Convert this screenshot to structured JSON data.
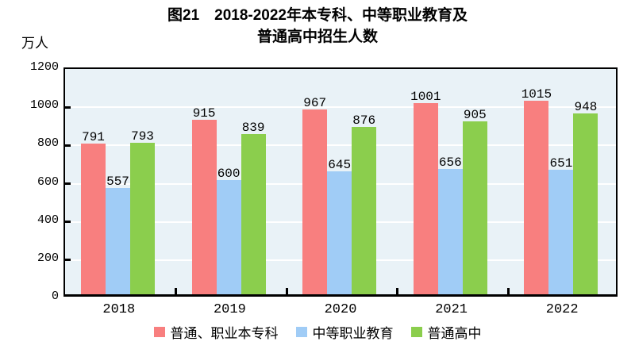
{
  "title": {
    "line1": "图21　2018-2022年本专科、中等职业教育及",
    "line2": "普通高中招生人数"
  },
  "y_axis": {
    "unit": "万人",
    "ticks": [
      0,
      200,
      400,
      600,
      800,
      1000,
      1200
    ]
  },
  "chart_data": {
    "type": "bar",
    "title": "图21 2018-2022年本专科、中等职业教育及普通高中招生人数",
    "xlabel": "",
    "ylabel": "万人",
    "ylim": [
      0,
      1200
    ],
    "grid": true,
    "legend_position": "bottom",
    "categories": [
      "2018",
      "2019",
      "2020",
      "2021",
      "2022"
    ],
    "series": [
      {
        "name": "普通、职业本专科",
        "color": "#F87F7F",
        "values": [
          791,
          915,
          967,
          1001,
          1015
        ]
      },
      {
        "name": "中等职业教育",
        "color": "#A0CCF6",
        "values": [
          557,
          600,
          645,
          656,
          651
        ]
      },
      {
        "name": "普通高中",
        "color": "#8BCE4D",
        "values": [
          793,
          839,
          876,
          905,
          948
        ]
      }
    ]
  },
  "colors": {
    "plot_bg": "#E9F2F7",
    "gridline": "#FFFFFF",
    "axis": "#000000",
    "text": "#000000"
  }
}
